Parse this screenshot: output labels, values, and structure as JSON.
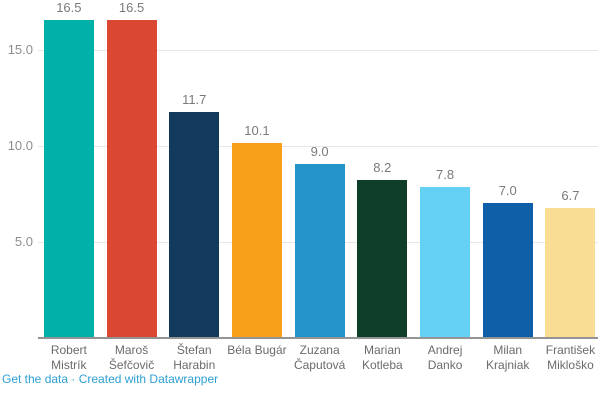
{
  "chart_data": {
    "type": "bar",
    "categories": [
      "Robert Mistrík",
      "Maroš Šefčovič",
      "Štefan Harabin",
      "Béla Bugár",
      "Zuzana Čaputová",
      "Marian Kotleba",
      "Andrej Danko",
      "Milan Krajniak",
      "František Mikloško"
    ],
    "category_lines": [
      [
        "Robert",
        "Mistrík"
      ],
      [
        "Maroš",
        "Šefčovič"
      ],
      [
        "Štefan",
        "Harabin"
      ],
      [
        "Béla Bugár"
      ],
      [
        "Zuzana",
        "Čaputová"
      ],
      [
        "Marian",
        "Kotleba"
      ],
      [
        "Andrej",
        "Danko"
      ],
      [
        "Milan",
        "Krajniak"
      ],
      [
        "František",
        "Mikloško"
      ]
    ],
    "values": [
      16.5,
      16.5,
      11.7,
      10.1,
      9.0,
      8.2,
      7.8,
      7.0,
      6.7
    ],
    "value_labels": [
      "16.5",
      "16.5",
      "11.7",
      "10.1",
      "9.0",
      "8.2",
      "7.8",
      "7.0",
      "6.7"
    ],
    "bar_colors": [
      "#00b1a9",
      "#da4733",
      "#113a5c",
      "#f9a01b",
      "#2493c9",
      "#0e3e28",
      "#63d0f4",
      "#0f5fa8",
      "#f9dd95"
    ],
    "title": "",
    "xlabel": "",
    "ylabel": "",
    "ylim": [
      0,
      17
    ],
    "yticks": [
      5.0,
      10.0,
      15.0
    ],
    "ytick_labels": [
      "5.0",
      "10.0",
      "15.0"
    ],
    "grid": true,
    "legend": false
  },
  "footer": {
    "get_data_label": "Get the data",
    "separator": " · ",
    "credit_label": "Created with Datawrapper",
    "link_color": "#2e9fd3"
  },
  "colors": {
    "background": "#ffffff",
    "grid": "#e6e6e6",
    "baseline": "#949494",
    "tick_label": "#8d8d8d",
    "value_label": "#7a7a7a",
    "category_label": "#6b6b6b"
  }
}
